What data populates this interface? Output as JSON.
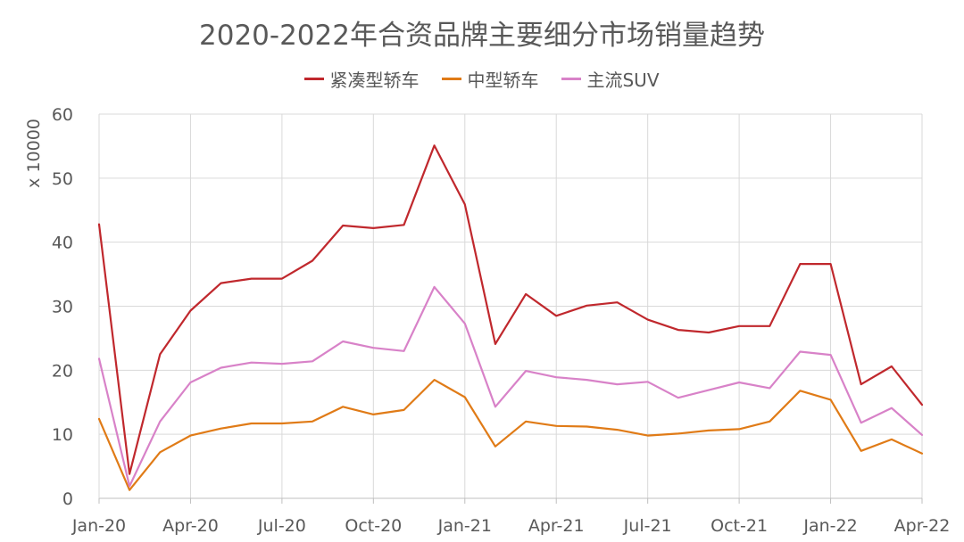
{
  "chart_data": {
    "type": "line",
    "title": "2020-2022年合资品牌主要细分市场销量趋势",
    "ylabel": "x 10000",
    "xlabel": "",
    "ylim": [
      0,
      60
    ],
    "yticks": [
      "0",
      "10",
      "20",
      "30",
      "40",
      "50",
      "60"
    ],
    "xtick_labels": [
      "Jan-20",
      "Apr-20",
      "Jul-20",
      "Oct-20",
      "Jan-21",
      "Apr-21",
      "Jul-21",
      "Oct-21",
      "Jan-22",
      "Apr-22"
    ],
    "x": [
      "Jan-20",
      "Feb-20",
      "Mar-20",
      "Apr-20",
      "May-20",
      "Jun-20",
      "Jul-20",
      "Aug-20",
      "Sep-20",
      "Oct-20",
      "Nov-20",
      "Dec-20",
      "Jan-21",
      "Feb-21",
      "Mar-21",
      "Apr-21",
      "May-21",
      "Jun-21",
      "Jul-21",
      "Aug-21",
      "Sep-21",
      "Oct-21",
      "Nov-21",
      "Dec-21",
      "Jan-22",
      "Feb-22",
      "Mar-22",
      "Apr-22"
    ],
    "grid": true,
    "legend_position": "top",
    "series": [
      {
        "name": "紧凑型轿车",
        "color": "#C0282D",
        "values": [
          42.8,
          3.8,
          22.5,
          29.3,
          33.6,
          34.3,
          34.3,
          37.1,
          42.6,
          42.2,
          42.7,
          55.1,
          45.9,
          24.1,
          31.9,
          28.5,
          30.1,
          30.6,
          27.9,
          26.3,
          25.9,
          26.9,
          26.9,
          36.6,
          36.6,
          17.8,
          20.6,
          14.6
        ]
      },
      {
        "name": "中型轿车",
        "color": "#E07B17",
        "values": [
          12.4,
          1.3,
          7.2,
          9.8,
          10.9,
          11.7,
          11.7,
          12.0,
          14.3,
          13.1,
          13.8,
          18.5,
          15.8,
          8.1,
          12.0,
          11.3,
          11.2,
          10.7,
          9.8,
          10.1,
          10.6,
          10.8,
          12.0,
          16.8,
          15.4,
          7.4,
          9.2,
          7.0
        ]
      },
      {
        "name": "主流SUV",
        "color": "#D882C8",
        "values": [
          21.8,
          1.9,
          12.0,
          18.1,
          20.4,
          21.2,
          21.0,
          21.4,
          24.5,
          23.5,
          23.0,
          33.0,
          27.3,
          14.3,
          19.9,
          18.9,
          18.5,
          17.8,
          18.2,
          15.7,
          16.9,
          18.1,
          17.2,
          22.9,
          22.4,
          11.8,
          14.1,
          9.9
        ]
      }
    ]
  }
}
